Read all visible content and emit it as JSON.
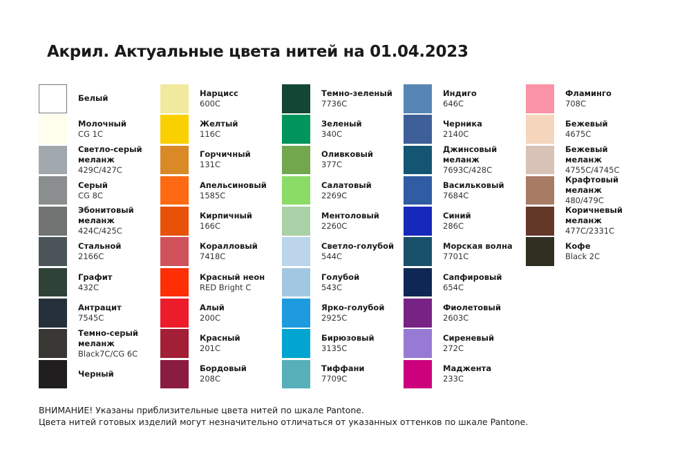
{
  "title": "Акрил. Актуальные цвета нитей на 01.04.2023",
  "columns": [
    [
      {
        "name": "Белый",
        "code": "",
        "color": "#ffffff"
      },
      {
        "name": "Молочный",
        "code": "CG 1C",
        "color": "#fffdeb"
      },
      {
        "name": "Светло-серый\nмеланж",
        "code": "429C/427C",
        "color": "#a1a8ae"
      },
      {
        "name": "Серый",
        "code": "CG 8C",
        "color": "#8b8e8f"
      },
      {
        "name": "Эбонитовый\nмеланж",
        "code": "424C/425C",
        "color": "#707372"
      },
      {
        "name": "Стальной",
        "code": "2166C",
        "color": "#4b5559"
      },
      {
        "name": "Графит",
        "code": "432C",
        "color": "#2f4238"
      },
      {
        "name": "Антрацит",
        "code": "7545C",
        "color": "#25303a"
      },
      {
        "name": "Темно-серый\nмеланж",
        "code": "Black7C/CG 6C",
        "color": "#3a3834"
      },
      {
        "name": "Черный",
        "code": "",
        "color": "#201e1f"
      }
    ],
    [
      {
        "name": "Нарцисс",
        "code": "600C",
        "color": "#f1ea9e"
      },
      {
        "name": "Желтый",
        "code": "116C",
        "color": "#fbd000"
      },
      {
        "name": "Горчичный",
        "code": "131C",
        "color": "#d98926"
      },
      {
        "name": "Апельсиновый",
        "code": "1585C",
        "color": "#fe6a14"
      },
      {
        "name": "Кирпичный",
        "code": "166C",
        "color": "#e75208"
      },
      {
        "name": "Коралловый",
        "code": "7418C",
        "color": "#cf525b"
      },
      {
        "name": "Красный неон",
        "code": "RED Bright C",
        "color": "#fe2e05"
      },
      {
        "name": "Алый",
        "code": "200C",
        "color": "#ec1c2b"
      },
      {
        "name": "Красный",
        "code": "201C",
        "color": "#a21f35"
      },
      {
        "name": "Бордовый",
        "code": "208C",
        "color": "#8a1c42"
      }
    ],
    [
      {
        "name": "Темно-зеленый",
        "code": "7736C",
        "color": "#134634"
      },
      {
        "name": "Зеленый",
        "code": "340C",
        "color": "#01955d"
      },
      {
        "name": "Оливковый",
        "code": "377C",
        "color": "#72a74e"
      },
      {
        "name": "Салатовый",
        "code": "2269C",
        "color": "#8bdc66"
      },
      {
        "name": "Ментоловый",
        "code": "2260C",
        "color": "#a9d1a8"
      },
      {
        "name": "Светло-голубой",
        "code": "544C",
        "color": "#bdd5eb"
      },
      {
        "name": "Голубой",
        "code": "543C",
        "color": "#a2c7e3"
      },
      {
        "name": "Ярко-голубой",
        "code": "2925C",
        "color": "#1e9ade"
      },
      {
        "name": "Бирюзовый",
        "code": "3135C",
        "color": "#01a5cf"
      },
      {
        "name": "Тиффани",
        "code": "7709C",
        "color": "#57afba"
      }
    ],
    [
      {
        "name": "Индиго",
        "code": "646C",
        "color": "#5886b4"
      },
      {
        "name": "Черника",
        "code": "2140C",
        "color": "#3f5f98"
      },
      {
        "name": "Джинсовый\nмеланж",
        "code": "7693C/428C",
        "color": "#135573"
      },
      {
        "name": "Васильковый",
        "code": "7684C",
        "color": "#2f5ca2"
      },
      {
        "name": "Синий",
        "code": "286C",
        "color": "#1729bb"
      },
      {
        "name": "Морская волна",
        "code": "7701C",
        "color": "#195069"
      },
      {
        "name": "Сапфировый",
        "code": "654C",
        "color": "#0f2755"
      },
      {
        "name": "Фиолетовый",
        "code": "2603C",
        "color": "#772383"
      },
      {
        "name": "Сиреневый",
        "code": "272C",
        "color": "#977ad3"
      },
      {
        "name": "Маджента",
        "code": "233C",
        "color": "#cc007c"
      }
    ],
    [
      {
        "name": "Фламинго",
        "code": "708C",
        "color": "#f993a5"
      },
      {
        "name": "Бежевый",
        "code": "4675C",
        "color": "#f5d6bd"
      },
      {
        "name": "Бежевый\nмеланж",
        "code": "4755C/4745C",
        "color": "#d8c1b6"
      },
      {
        "name": "Крафтовый меланж",
        "code": "480/479C",
        "color": "#a87b65"
      },
      {
        "name": "Коричневый\nмеланж",
        "code": "477C/2331C",
        "color": "#643829"
      },
      {
        "name": "Кофе",
        "code": "Black 2C",
        "color": "#312f22"
      }
    ]
  ],
  "footer": {
    "line1": "ВНИМАНИЕ! Указаны приблизительные цвета нитей по шкале Pantone.",
    "line2": "Цвета нитей готовых изделий могут незначительно отличаться от указанных оттенков по шкале Pantone."
  }
}
